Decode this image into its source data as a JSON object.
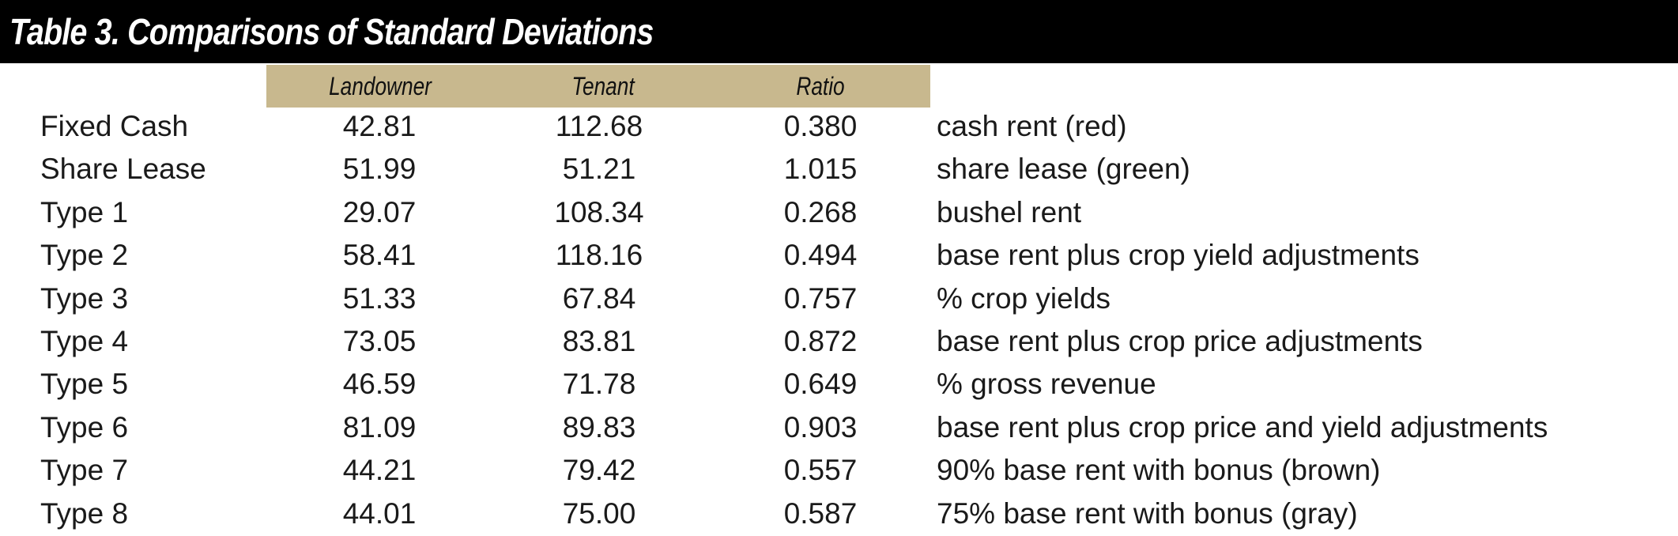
{
  "title": "Table 3. Comparisons of Standard Deviations",
  "columns": [
    "Landowner",
    "Tenant",
    "Ratio"
  ],
  "accent_color": "#c8b88e",
  "rows": [
    {
      "label": "Fixed Cash",
      "landowner": "42.81",
      "tenant": "112.68",
      "ratio": "0.380",
      "description": "cash rent (red)"
    },
    {
      "label": "Share Lease",
      "landowner": "51.99",
      "tenant": "51.21",
      "ratio": "1.015",
      "description": "share lease (green)"
    },
    {
      "label": "Type 1",
      "landowner": "29.07",
      "tenant": "108.34",
      "ratio": "0.268",
      "description": "bushel rent"
    },
    {
      "label": "Type 2",
      "landowner": "58.41",
      "tenant": "118.16",
      "ratio": "0.494",
      "description": "base rent plus crop yield adjustments"
    },
    {
      "label": "Type 3",
      "landowner": "51.33",
      "tenant": "67.84",
      "ratio": "0.757",
      "description": "% crop yields"
    },
    {
      "label": "Type 4",
      "landowner": "73.05",
      "tenant": "83.81",
      "ratio": "0.872",
      "description": "base rent plus crop price adjustments"
    },
    {
      "label": "Type 5",
      "landowner": "46.59",
      "tenant": "71.78",
      "ratio": "0.649",
      "description": "% gross revenue"
    },
    {
      "label": "Type 6",
      "landowner": "81.09",
      "tenant": "89.83",
      "ratio": "0.903",
      "description": "base rent plus crop price and yield adjustments"
    },
    {
      "label": "Type 7",
      "landowner": "44.21",
      "tenant": "79.42",
      "ratio": "0.557",
      "description": "90% base rent with bonus (brown)"
    },
    {
      "label": "Type 8",
      "landowner": "44.01",
      "tenant": "75.00",
      "ratio": "0.587",
      "description": "75% base rent with bonus (gray)"
    }
  ]
}
